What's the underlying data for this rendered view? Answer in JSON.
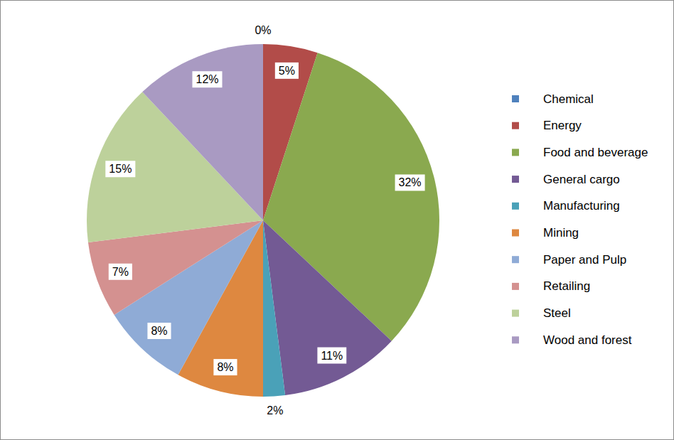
{
  "chart_data": {
    "type": "pie",
    "categories": [
      "Chemical",
      "Energy",
      "Food and beverage",
      "General cargo",
      "Manufacturing",
      "Mining",
      "Paper and Pulp",
      "Retailing",
      "Steel",
      "Wood and forest"
    ],
    "values": [
      0,
      5,
      32,
      11,
      2,
      8,
      8,
      7,
      15,
      12
    ],
    "value_labels": [
      "0%",
      "5%",
      "32%",
      "11%",
      "2%",
      "8%",
      "8%",
      "7%",
      "15%",
      "12%"
    ],
    "colors": [
      "#4f81bd",
      "#b24c49",
      "#8aa94f",
      "#735a94",
      "#4aa1b8",
      "#de8840",
      "#8fabd6",
      "#d49190",
      "#bdd19b",
      "#a99ac2"
    ],
    "data_labels": true,
    "legend": "right"
  }
}
